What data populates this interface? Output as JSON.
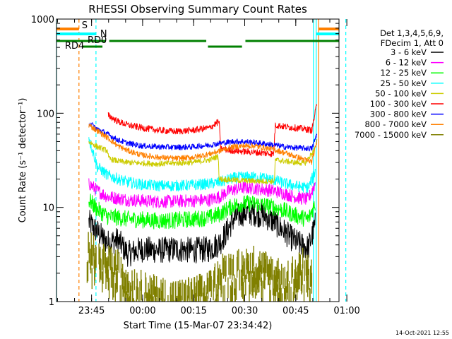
{
  "chart_data": {
    "type": "line",
    "title": "RHESSI Observing Summary Count Rates",
    "xlabel": "Start Time (15-Mar-07 23:34:42)",
    "ylabel": "Count Rate (s⁻¹ detector⁻¹)",
    "yscale": "log",
    "ylim": [
      1,
      1000
    ],
    "xlim_minutes": [
      0,
      83
    ],
    "x_ticks": [
      {
        "label": "23:45",
        "minute": 10.3
      },
      {
        "label": "00:00",
        "minute": 25.3
      },
      {
        "label": "00:15",
        "minute": 40.3
      },
      {
        "label": "00:30",
        "minute": 55.3
      },
      {
        "label": "00:45",
        "minute": 70.3
      },
      {
        "label": "01:00",
        "minute": 85.3
      }
    ],
    "y_ticks": [
      {
        "label": "1",
        "value": 1
      },
      {
        "label": "10",
        "value": 10
      },
      {
        "label": "100",
        "value": 100
      },
      {
        "label": "1000",
        "value": 1000
      }
    ],
    "legend_header": [
      "Det 1,3,4,5,6,9,",
      "FDecim 1, Att 0"
    ],
    "series": [
      {
        "name": "3 - 6 keV",
        "color": "#000000",
        "x": [
          9.5,
          12,
          15,
          18,
          21,
          25,
          30,
          35,
          40,
          45,
          48,
          50,
          52,
          55,
          58,
          61,
          64,
          67,
          70,
          72,
          74,
          76
        ],
        "y": [
          7,
          5.5,
          4.2,
          4.5,
          3.2,
          3.6,
          3.5,
          3.6,
          3.5,
          3.6,
          4.2,
          5.5,
          7.5,
          8.8,
          8.7,
          8.2,
          7.0,
          5.5,
          4.4,
          4.0,
          3.7,
          6.5
        ]
      },
      {
        "name": "6 - 12 keV",
        "color": "#ff00ff",
        "x": [
          9.5,
          12,
          15,
          18,
          21,
          25,
          30,
          35,
          40,
          45,
          48,
          50,
          52,
          55,
          58,
          61,
          64,
          67,
          70,
          72,
          74,
          76
        ],
        "y": [
          18,
          15,
          13,
          12.5,
          12,
          11.8,
          11.5,
          11.6,
          11.8,
          12,
          13,
          14.5,
          15.5,
          16.2,
          16,
          15.5,
          15,
          14,
          13,
          12.5,
          12.2,
          18
        ]
      },
      {
        "name": "12 - 25 keV",
        "color": "#00ff00",
        "x": [
          9.5,
          12,
          15,
          18,
          21,
          25,
          30,
          35,
          40,
          45,
          48,
          50,
          52,
          55,
          58,
          61,
          64,
          67,
          70,
          72,
          74,
          76
        ],
        "y": [
          12,
          9.5,
          8,
          7.8,
          7.5,
          7.4,
          7.2,
          7.3,
          7.5,
          7.8,
          8.5,
          9.5,
          10.5,
          11,
          11,
          10.6,
          10,
          9.2,
          8.3,
          7.8,
          7.5,
          11
        ]
      },
      {
        "name": "25 - 50 keV",
        "color": "#00ffff",
        "x": [
          9.5,
          12,
          15,
          18,
          21,
          25,
          30,
          35,
          40,
          45,
          48,
          50,
          52,
          55,
          58,
          61,
          64,
          67,
          70,
          72,
          74,
          76
        ],
        "y": [
          55,
          27,
          22,
          20,
          18.5,
          17.5,
          17,
          17,
          17.3,
          17.8,
          18.5,
          19.5,
          20.5,
          21,
          21,
          20.5,
          19.5,
          18,
          17,
          16.5,
          16.2,
          24
        ]
      },
      {
        "name": "50 - 100 keV",
        "color": "#cccc00",
        "x": [
          9.5,
          12,
          15,
          15.3,
          18,
          21,
          25,
          30,
          35,
          40,
          45,
          47.5,
          47.8,
          52,
          56,
          60,
          64,
          64.3,
          67,
          70,
          73,
          76
        ],
        "y": [
          50,
          44,
          40,
          33,
          31,
          30,
          29.5,
          29,
          29.5,
          30,
          32,
          35,
          20,
          19.5,
          19.2,
          19,
          19,
          32,
          31,
          30,
          29.5,
          42
        ]
      },
      {
        "name": "100 - 300 keV",
        "color": "#ff0000",
        "x": [
          15.2,
          18,
          21,
          25,
          30,
          35,
          40,
          45,
          47.8,
          48.2,
          52,
          56,
          60,
          63.8,
          64.3,
          67,
          70,
          73,
          75,
          76.5
        ],
        "y": [
          95,
          82,
          75,
          70,
          66,
          64,
          66,
          70,
          82,
          42,
          40,
          39,
          38,
          37,
          75,
          72,
          70,
          68,
          66,
          125
        ]
      },
      {
        "name": "300 - 800 keV",
        "color": "#0000ff",
        "x": [
          9.5,
          12,
          15,
          18,
          21,
          25,
          30,
          35,
          40,
          45,
          48,
          50,
          52,
          55,
          58,
          61,
          64,
          67,
          70,
          73,
          75,
          76.5
        ],
        "y": [
          80,
          68,
          60,
          52,
          48,
          45,
          44,
          43.5,
          44,
          46,
          48,
          49,
          50,
          50,
          49,
          47.5,
          46,
          44,
          43,
          42.5,
          42,
          60
        ]
      },
      {
        "name": "800 - 7000 keV",
        "color": "#ff8000",
        "x": [
          9.5,
          12,
          15,
          18,
          21,
          25,
          30,
          35,
          40,
          45,
          48,
          50,
          52,
          55,
          58,
          61,
          64,
          67,
          70,
          73,
          75,
          76.5
        ],
        "y": [
          75,
          65,
          55,
          45,
          40,
          36,
          34,
          33,
          34,
          37,
          40,
          42,
          44,
          45,
          45,
          43,
          41,
          38,
          35,
          32,
          30.5,
          50
        ]
      },
      {
        "name": "7000 - 15000 keV",
        "color": "#808000",
        "x": [
          9,
          12,
          15,
          18,
          21,
          25,
          30,
          35,
          40,
          45,
          48,
          50,
          52,
          55,
          58,
          61,
          64,
          67,
          70,
          73,
          75
        ],
        "y": [
          4.5,
          3.2,
          2.8,
          2.5,
          2.0,
          1.5,
          1.3,
          1.2,
          1.3,
          1.5,
          2.2,
          2.5,
          2.4,
          2.6,
          2.8,
          2.5,
          2.2,
          2.0,
          2.3,
          2.7,
          2.0
        ]
      }
    ],
    "vertical_markers": [
      {
        "minute": 0.0,
        "color": "#00ffff",
        "style": "solid"
      },
      {
        "minute": 6.6,
        "color": "#ff8000",
        "style": "dashed"
      },
      {
        "minute": 11.6,
        "color": "#00ffff",
        "style": "dashed"
      },
      {
        "minute": 75.5,
        "color": "#00ffff",
        "style": "solid"
      },
      {
        "minute": 76.3,
        "color": "#00ffff",
        "style": "solid"
      },
      {
        "minute": 77.0,
        "color": "#ff8000",
        "style": "solid"
      },
      {
        "minute": 85.0,
        "color": "#00ffff",
        "style": "dashed"
      }
    ],
    "flag_bars": [
      {
        "label": "S",
        "color": "#ff8000",
        "level": 1,
        "spans": [
          [
            0,
            6.6
          ],
          [
            77.0,
            83
          ]
        ]
      },
      {
        "label": "N",
        "color": "#00ffff",
        "level": 2,
        "spans": [
          [
            0,
            11.6
          ],
          [
            76.3,
            83
          ]
        ]
      },
      {
        "label": "RD0",
        "color": "#008000",
        "level": 3,
        "spans": [
          [
            0,
            14.5
          ],
          [
            15.5,
            44
          ],
          [
            55.5,
            83
          ]
        ]
      },
      {
        "label": "RD4",
        "color": "#008000",
        "level": 4,
        "spans": [
          [
            7.5,
            13.5
          ],
          [
            44.5,
            54.5
          ]
        ]
      }
    ]
  },
  "footer": {
    "timestamp": "14-Oct-2021 12:55"
  }
}
